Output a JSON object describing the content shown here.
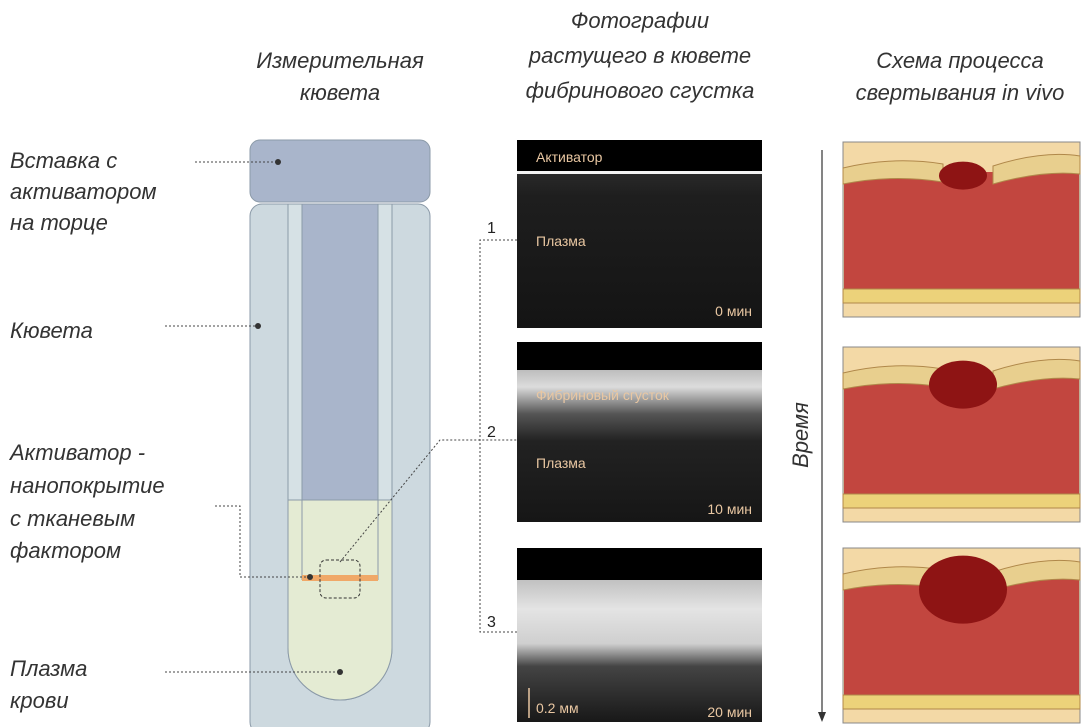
{
  "headers": [
    {
      "lines": [
        "Измерительная",
        "кювета"
      ]
    },
    {
      "lines": [
        "Фотографии",
        "растущего в кювете",
        "фибринового сгустка"
      ]
    },
    {
      "lines": [
        "Схема процесса",
        "свертывания in vivo"
      ]
    }
  ],
  "labels": [
    {
      "lines": [
        "Вставка с",
        "активатором",
        "на торце"
      ]
    },
    {
      "lines": [
        "Кювета"
      ]
    },
    {
      "lines": [
        "Активатор -",
        "нанопокрытие",
        "с  тканевым",
        "фактором"
      ]
    },
    {
      "lines": [
        "Плазма",
        "крови"
      ]
    }
  ],
  "photos": [
    {
      "number": "1",
      "texts": [
        "Активатор",
        "Плазма",
        "0 мин"
      ]
    },
    {
      "number": "2",
      "texts": [
        "Фибриновый сгусток",
        "Плазма",
        "10 мин"
      ]
    },
    {
      "number": "3",
      "texts": [
        "0.2 мм",
        "20 мин"
      ]
    }
  ],
  "time_axis": "Время"
}
